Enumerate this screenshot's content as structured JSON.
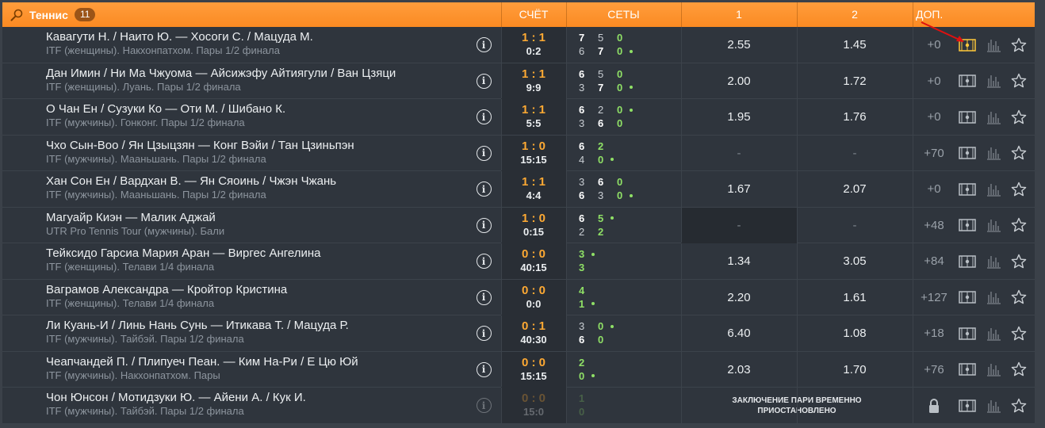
{
  "header": {
    "sport": "Теннис",
    "count": "11",
    "col_score": "СЧЁТ",
    "col_sets": "СЕТЫ",
    "col_1": "1",
    "col_2": "2",
    "col_extra": "ДОП."
  },
  "colors": {
    "header_orange": "#fb8a22",
    "score_orange": "#fda933",
    "current_set_green": "#8fe066",
    "row_bg": "#2f353d"
  },
  "matches": [
    {
      "teams": "Кавагути Н. / Наито Ю. — Хосоги С. / Мацуда М.",
      "league": "ITF (женщины). Накхонпатхом. Пары 1/2 финала",
      "score": "1 : 1",
      "game": "0:2",
      "sets1": [
        "7",
        "5"
      ],
      "sets2": [
        "6",
        "7"
      ],
      "cur1": "0",
      "cur2": "0",
      "serve": 2,
      "odd1": "2.55",
      "odd2": "1.45",
      "extra": "+0",
      "highlight_field": true
    },
    {
      "teams": "Дан Имин / Ни Ма Чжуома — Айсижэфу Айтиягули / Ван Цзяци",
      "league": "ITF (женщины). Луань. Пары 1/2 финала",
      "score": "1 : 1",
      "game": "9:9",
      "sets1": [
        "6",
        "5"
      ],
      "sets2": [
        "3",
        "7"
      ],
      "cur1": "0",
      "cur2": "0",
      "serve": 2,
      "odd1": "2.00",
      "odd2": "1.72",
      "extra": "+0"
    },
    {
      "teams": "О Чан Ен / Сузуки Ко — Оти М. / Шибано К.",
      "league": "ITF (мужчины). Гонконг. Пары 1/2 финала",
      "score": "1 : 1",
      "game": "5:5",
      "sets1": [
        "6",
        "2"
      ],
      "sets2": [
        "3",
        "6"
      ],
      "cur1": "0",
      "cur2": "0",
      "serve": 1,
      "odd1": "1.95",
      "odd2": "1.76",
      "extra": "+0"
    },
    {
      "teams": "Чхо Сын-Воо / Ян Цзыцзян — Конг Вэйи / Тан Цзиньпэн",
      "league": "ITF (мужчины). Мааньшань. Пары 1/2 финала",
      "score": "1 : 0",
      "game": "15:15",
      "sets1": [
        "6"
      ],
      "sets2": [
        "4"
      ],
      "cur1": "2",
      "cur2": "0",
      "serve": 2,
      "odd1": "-",
      "odd2": "-",
      "extra": "+70"
    },
    {
      "teams": "Хан Сон Ен / Вардхан В. — Ян Сяоинь / Чжэн Чжань",
      "league": "ITF (мужчины). Мааньшань. Пары 1/2 финала",
      "score": "1 : 1",
      "game": "4:4",
      "sets1": [
        "3",
        "6"
      ],
      "sets2": [
        "6",
        "3"
      ],
      "cur1": "0",
      "cur2": "0",
      "serve": 2,
      "odd1": "1.67",
      "odd2": "2.07",
      "extra": "+0"
    },
    {
      "teams": "Магуайр Киэн — Малик Аджай",
      "league": "UTR Pro Tennis Tour (мужчины). Бали",
      "score": "1 : 0",
      "game": "0:15",
      "sets1": [
        "6"
      ],
      "sets2": [
        "2"
      ],
      "cur1": "5",
      "cur2": "2",
      "serve": 1,
      "odd1": "-",
      "odd2": "-",
      "extra": "+48",
      "dark_odd1": true
    },
    {
      "teams": "Тейксидо Гарсиа Мария Аран — Виргес Ангелина",
      "league": "ITF (женщины). Телави 1/4 финала",
      "score": "0 : 0",
      "game": "40:15",
      "sets1": [],
      "sets2": [],
      "cur1": "3",
      "cur2": "3",
      "serve": 1,
      "odd1": "1.34",
      "odd2": "3.05",
      "extra": "+84"
    },
    {
      "teams": "Ваграмов Александра — Кройтор Кристина",
      "league": "ITF (женщины). Телави 1/4 финала",
      "score": "0 : 0",
      "game": "0:0",
      "sets1": [],
      "sets2": [],
      "cur1": "4",
      "cur2": "1",
      "serve": 2,
      "odd1": "2.20",
      "odd2": "1.61",
      "extra": "+127"
    },
    {
      "teams": "Ли Куань-И / Линь Нань Сунь — Итикава Т. / Мацуда Р.",
      "league": "ITF (мужчины). Тайбэй. Пары 1/2 финала",
      "score": "0 : 1",
      "game": "40:30",
      "sets1": [
        "3"
      ],
      "sets2": [
        "6"
      ],
      "cur1": "0",
      "cur2": "0",
      "serve": 1,
      "odd1": "6.40",
      "odd2": "1.08",
      "extra": "+18"
    },
    {
      "teams": "Чеапчандей П. / Плипуеч Пеан. — Ким На-Ри / Е Цю Юй",
      "league": "ITF (мужчины). Накхонпатхом. Пары",
      "score": "0 : 0",
      "game": "15:15",
      "sets1": [],
      "sets2": [],
      "cur1": "2",
      "cur2": "0",
      "serve": 2,
      "odd1": "2.03",
      "odd2": "1.70",
      "extra": "+76"
    },
    {
      "teams": "Чон Юнсон / Мотидзуки Ю. — Айени А. / Кук И.",
      "league": "ITF (мужчины). Тайбэй. Пары 1/2 финала",
      "score": "0 : 0",
      "game": "15:0",
      "sets1": [],
      "sets2": [],
      "cur1": "1",
      "cur2": "0",
      "serve": 0,
      "suspended": "ЗАКЛЮЧЕНИЕ ПАРИ ВРЕМЕННО ПРИОСТАНОВЛЕНО",
      "locked": true
    }
  ]
}
